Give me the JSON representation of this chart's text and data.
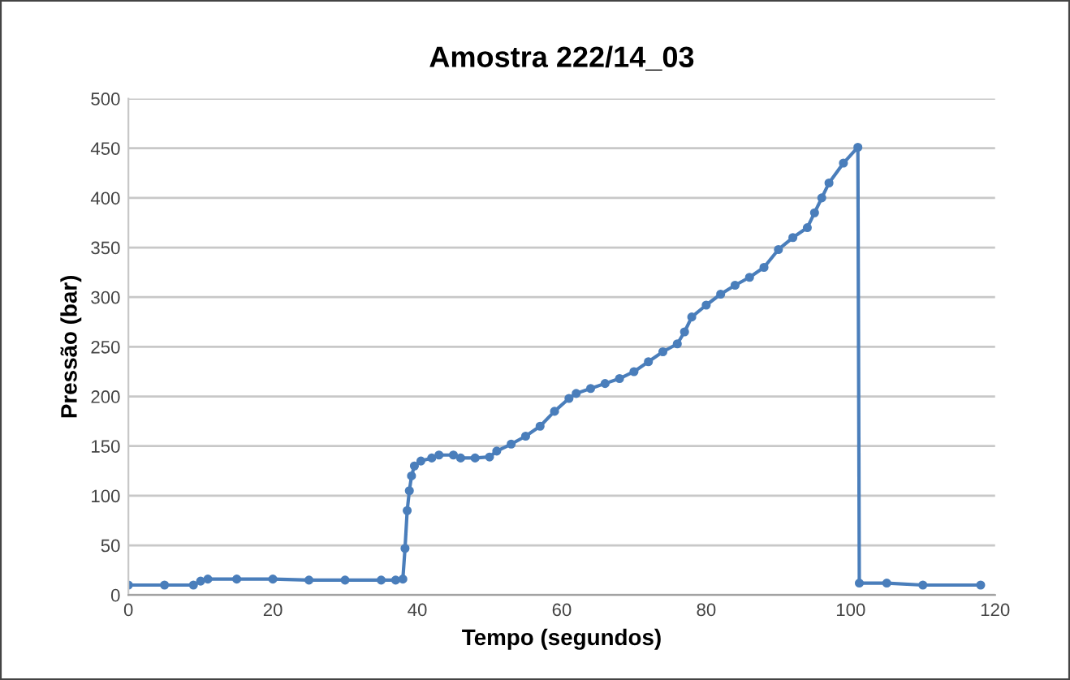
{
  "chart_data": {
    "type": "line",
    "title": "Amostra 222/14_03",
    "xlabel": "Tempo (segundos)",
    "ylabel": "Pressão (bar)",
    "series": [
      {
        "color": "#4a7ebb",
        "x": [
          0,
          5,
          9,
          10,
          11,
          15,
          20,
          25,
          30,
          35,
          37,
          38,
          38.3,
          38.6,
          38.9,
          39.2,
          39.6,
          40.5,
          42,
          43,
          45,
          46,
          48,
          50,
          51,
          53,
          55,
          57,
          59,
          61,
          62,
          64,
          66,
          68,
          70,
          72,
          74,
          76,
          77,
          78,
          80,
          82,
          84,
          86,
          88,
          90,
          92,
          94,
          95,
          96,
          97,
          99,
          101,
          101.2,
          105,
          110,
          118
        ],
        "values": [
          10,
          10,
          10,
          14,
          16,
          16,
          16,
          15,
          15,
          15,
          15,
          16,
          47,
          85,
          105,
          120,
          130,
          135,
          138,
          141,
          141,
          138,
          138,
          139,
          145,
          152,
          160,
          170,
          185,
          198,
          203,
          208,
          213,
          218,
          225,
          235,
          245,
          253,
          265,
          280,
          292,
          303,
          312,
          320,
          330,
          348,
          360,
          370,
          385,
          400,
          415,
          435,
          451,
          12,
          12,
          10,
          10
        ]
      }
    ],
    "xlim": [
      0,
      120
    ],
    "xticks": [
      0,
      20,
      40,
      60,
      80,
      100,
      120
    ],
    "ylim": [
      0,
      500
    ],
    "yticks": [
      0,
      50,
      100,
      150,
      200,
      250,
      300,
      350,
      400,
      450,
      500
    ],
    "grid": "y",
    "legend": false,
    "marker": "circle",
    "line_style": "solid"
  }
}
